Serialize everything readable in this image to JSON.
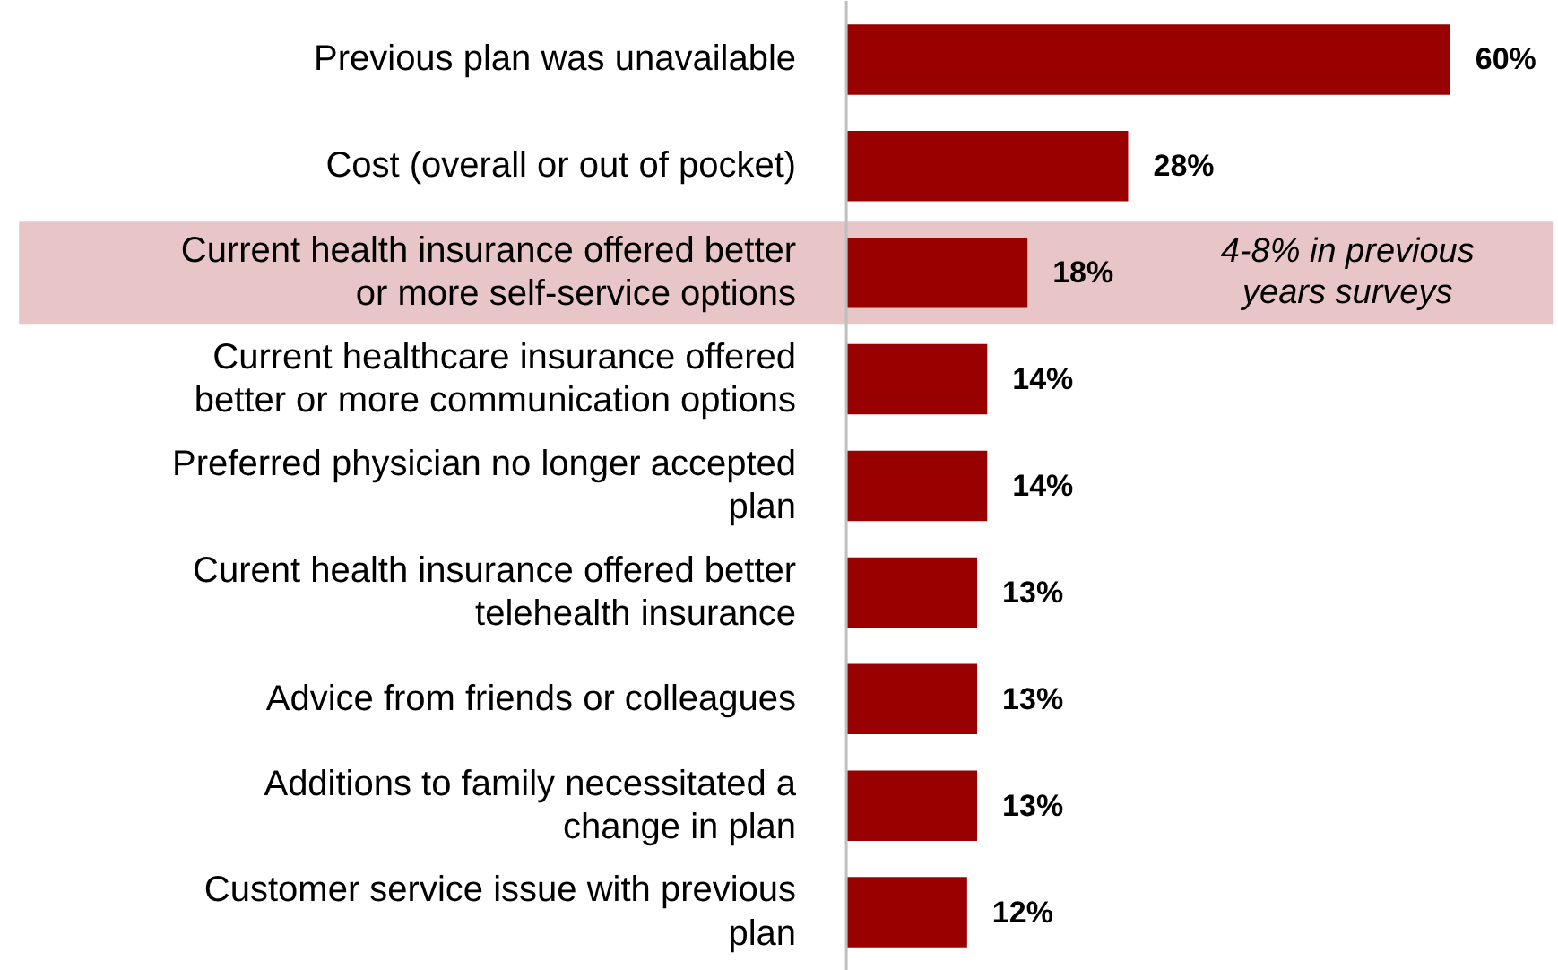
{
  "chart_data": {
    "type": "bar",
    "orientation": "horizontal",
    "categories": [
      "Previous plan was unavailable",
      "Cost (overall or out of pocket)",
      "Current health insurance offered better or more self-service options",
      "Current healthcare insurance offered better or more communication options",
      "Preferred physician no longer accepted plan",
      "Curent health insurance offered better telehealth insurance",
      "Advice from friends or colleagues",
      "Additions to family necessitated a change in plan",
      "Customer service issue with previous plan"
    ],
    "values": [
      60,
      28,
      18,
      14,
      14,
      13,
      13,
      13,
      12
    ],
    "value_labels": [
      "60%",
      "28%",
      "18%",
      "14%",
      "14%",
      "13%",
      "13%",
      "13%",
      "12%"
    ],
    "color": "#990000",
    "bands": [
      {
        "axis": "y",
        "from": "Current health insurance offered better or more self-service options",
        "to": "Current health insurance offered better or more self-service options",
        "color": "#e8c6c8"
      }
    ],
    "annotations": [
      "4-8% in previous years surveys"
    ],
    "grid": false
  }
}
